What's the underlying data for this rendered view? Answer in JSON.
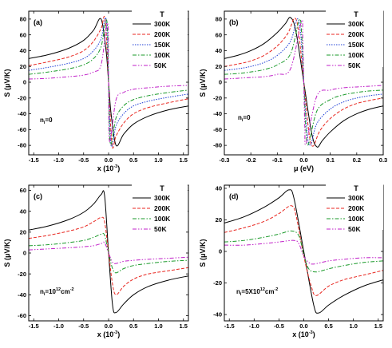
{
  "colors": {
    "300K": "#000000",
    "200K": "#e8261f",
    "150K": "#1f3fd6",
    "100K": "#1a9a2a",
    "50K": "#c020c8"
  },
  "chart_data": [
    {
      "panel": "(a)",
      "type": "line",
      "x_label": "x (10",
      "x_label_sup": "-3",
      "x_label_end": ")",
      "y_label": "S (μV/K)",
      "xlim": [
        -1.6,
        1.6
      ],
      "ylim": [
        -92,
        90
      ],
      "xticks": [
        -1.5,
        -1.0,
        -0.5,
        0.0,
        0.5,
        1.0,
        1.5
      ],
      "xtick_labels": [
        "-1.5",
        "-1.0",
        "-0.5",
        "0.0",
        "0.5",
        "1.0",
        "1.5"
      ],
      "yticks": [
        -80,
        -60,
        -40,
        -20,
        0,
        20,
        40,
        60,
        80
      ],
      "ytick_labels": [
        "-80",
        "-60",
        "-40",
        "-20",
        "0",
        "20",
        "40",
        "60",
        "80"
      ],
      "legend_title": "T",
      "annotation": "n",
      "annotation_sub": "i",
      "annotation_rest": "=0",
      "series": [
        {
          "name": "300K",
          "peak_x": 0.1,
          "peak_y": 83,
          "x": [
            -1.6,
            -1.2,
            -0.8,
            -0.5,
            -0.3,
            -0.15,
            -0.05,
            0,
            0.05,
            0.15,
            0.3,
            0.5,
            0.8,
            1.2,
            1.6
          ],
          "y": [
            30,
            35,
            43,
            53,
            66,
            80,
            40,
            0,
            -40,
            -80,
            -66,
            -53,
            -43,
            -35,
            -30
          ]
        },
        {
          "name": "200K",
          "peak_x": 0.07,
          "peak_y": 82,
          "x": [
            -1.6,
            -1.2,
            -0.8,
            -0.5,
            -0.3,
            -0.15,
            -0.07,
            0,
            0.07,
            0.15,
            0.3,
            0.5,
            0.8,
            1.2,
            1.6
          ],
          "y": [
            21,
            26,
            32,
            40,
            52,
            68,
            80,
            0,
            -80,
            -68,
            -52,
            -40,
            -32,
            -26,
            -21
          ]
        },
        {
          "name": "150K",
          "peak_x": 0.05,
          "peak_y": 80,
          "x": [
            -1.6,
            -1.2,
            -0.8,
            -0.5,
            -0.3,
            -0.15,
            -0.05,
            0,
            0.05,
            0.15,
            0.3,
            0.5,
            0.8,
            1.2,
            1.6
          ],
          "y": [
            15,
            19,
            24,
            30,
            40,
            55,
            80,
            0,
            -80,
            -55,
            -40,
            -30,
            -24,
            -19,
            -15
          ]
        },
        {
          "name": "100K",
          "peak_x": 0.035,
          "peak_y": 78,
          "x": [
            -1.6,
            -1.2,
            -0.8,
            -0.5,
            -0.3,
            -0.15,
            -0.035,
            0,
            0.035,
            0.15,
            0.3,
            0.5,
            0.8,
            1.2,
            1.6
          ],
          "y": [
            10,
            13,
            17,
            22,
            30,
            45,
            78,
            0,
            -78,
            -45,
            -30,
            -22,
            -17,
            -13,
            -10
          ]
        },
        {
          "name": "50K",
          "peak_x": 0.02,
          "peak_y": 75,
          "x": [
            -1.6,
            -1.2,
            -0.8,
            -0.5,
            -0.3,
            -0.15,
            -0.02,
            0,
            0.02,
            0.15,
            0.3,
            0.5,
            0.8,
            1.2,
            1.6
          ],
          "y": [
            4,
            5,
            7,
            9,
            13,
            22,
            75,
            0,
            -75,
            -22,
            -13,
            -9,
            -7,
            -5,
            -4
          ]
        }
      ]
    },
    {
      "panel": "(b)",
      "type": "line",
      "x_label": "μ (eV)",
      "y_label": "S (μV/K)",
      "xlim": [
        -0.3,
        0.3
      ],
      "ylim": [
        -92,
        90
      ],
      "xticks": [
        -0.3,
        -0.2,
        -0.1,
        0.0,
        0.1,
        0.2,
        0.3
      ],
      "xtick_labels": [
        "-0.3",
        "-0.2",
        "-0.1",
        "0.0",
        "0.1",
        "0.2",
        "0.3"
      ],
      "yticks": [
        -80,
        -60,
        -40,
        -20,
        0,
        20,
        40,
        60,
        80
      ],
      "ytick_labels": [
        "-80",
        "-60",
        "-40",
        "-20",
        "0",
        "20",
        "40",
        "60",
        "80"
      ],
      "legend_title": "T",
      "annotation": "n",
      "annotation_sub": "i",
      "annotation_rest": "=0",
      "series": [
        {
          "name": "300K",
          "x": [
            -0.3,
            -0.25,
            -0.2,
            -0.15,
            -0.1,
            -0.07,
            -0.05,
            -0.03,
            0,
            0.03,
            0.05,
            0.07,
            0.1,
            0.15,
            0.2,
            0.25,
            0.3
          ],
          "y": [
            30,
            34,
            40,
            49,
            63,
            74,
            82,
            65,
            0,
            -65,
            -82,
            -74,
            -63,
            -49,
            -40,
            -34,
            -30
          ]
        },
        {
          "name": "200K",
          "x": [
            -0.3,
            -0.25,
            -0.2,
            -0.15,
            -0.1,
            -0.06,
            -0.035,
            -0.02,
            0,
            0.02,
            0.035,
            0.06,
            0.1,
            0.15,
            0.2,
            0.25,
            0.3
          ],
          "y": [
            20,
            23,
            27,
            34,
            46,
            62,
            81,
            65,
            0,
            -65,
            -81,
            -62,
            -46,
            -34,
            -27,
            -23,
            -20
          ]
        },
        {
          "name": "150K",
          "x": [
            -0.3,
            -0.25,
            -0.2,
            -0.15,
            -0.1,
            -0.05,
            -0.025,
            -0.012,
            0,
            0.012,
            0.025,
            0.05,
            0.1,
            0.15,
            0.2,
            0.25,
            0.3
          ],
          "y": [
            15,
            17,
            20,
            25,
            34,
            52,
            80,
            62,
            0,
            -62,
            -80,
            -52,
            -34,
            -25,
            -20,
            -17,
            -15
          ]
        },
        {
          "name": "100K",
          "x": [
            -0.3,
            -0.25,
            -0.2,
            -0.15,
            -0.1,
            -0.05,
            -0.017,
            -0.008,
            0,
            0.008,
            0.017,
            0.05,
            0.1,
            0.15,
            0.2,
            0.25,
            0.3
          ],
          "y": [
            10,
            11,
            13,
            16,
            22,
            36,
            79,
            60,
            0,
            -60,
            -79,
            -36,
            -22,
            -16,
            -13,
            -11,
            -10
          ]
        },
        {
          "name": "50K",
          "x": [
            -0.3,
            -0.25,
            -0.2,
            -0.15,
            -0.1,
            -0.05,
            -0.009,
            -0.004,
            0,
            0.004,
            0.009,
            0.05,
            0.1,
            0.15,
            0.2,
            0.25,
            0.3
          ],
          "y": [
            4,
            5,
            6,
            7,
            10,
            17,
            77,
            58,
            0,
            -58,
            -77,
            -17,
            -10,
            -7,
            -6,
            -5,
            -4
          ]
        }
      ]
    },
    {
      "panel": "(c)",
      "type": "line",
      "x_label": "x (10",
      "x_label_sup": "-3",
      "x_label_end": ")",
      "y_label": "S (μV/K)",
      "xlim": [
        -1.6,
        1.6
      ],
      "ylim": [
        -65,
        65
      ],
      "xticks": [
        -1.5,
        -1.0,
        -0.5,
        0.0,
        0.5,
        1.0,
        1.5
      ],
      "xtick_labels": [
        "-1.5",
        "-1.0",
        "-0.5",
        "0.0",
        "0.5",
        "1.0",
        "1.5"
      ],
      "yticks": [
        -60,
        -40,
        -20,
        0,
        20,
        40,
        60
      ],
      "ytick_labels": [
        "-60",
        "-40",
        "-20",
        "0",
        "20",
        "40",
        "60"
      ],
      "legend_title": "T",
      "annotation": "n",
      "annotation_sub": "i",
      "annotation_rest": "=10",
      "annotation_sup": "12",
      "annotation_end": "cm",
      "annotation_end_sup": "-2",
      "series": [
        {
          "name": "300K",
          "x": [
            -1.6,
            -1.2,
            -0.8,
            -0.5,
            -0.3,
            -0.15,
            -0.08,
            0,
            0.08,
            0.15,
            0.3,
            0.5,
            0.8,
            1.2,
            1.6
          ],
          "y": [
            22,
            26,
            32,
            39,
            47,
            56,
            55,
            0,
            -50,
            -57,
            -49,
            -40,
            -32,
            -26,
            -22
          ]
        },
        {
          "name": "200K",
          "x": [
            -1.6,
            -1.2,
            -0.8,
            -0.5,
            -0.3,
            -0.15,
            -0.08,
            0,
            0.08,
            0.15,
            0.3,
            0.5,
            0.8,
            1.2,
            1.6
          ],
          "y": [
            14,
            17,
            21,
            25,
            30,
            34,
            30,
            0,
            -30,
            -40,
            -32,
            -25,
            -20,
            -17,
            -14
          ]
        },
        {
          "name": "100K",
          "x": [
            -1.6,
            -1.2,
            -0.8,
            -0.5,
            -0.3,
            -0.15,
            -0.08,
            0,
            0.08,
            0.15,
            0.3,
            0.5,
            0.8,
            1.2,
            1.6
          ],
          "y": [
            7,
            8,
            10,
            12,
            15,
            18,
            17,
            0,
            -15,
            -19,
            -15,
            -12,
            -10,
            -8,
            -7
          ]
        },
        {
          "name": "50K",
          "x": [
            -1.6,
            -1.2,
            -0.8,
            -0.5,
            -0.3,
            -0.15,
            -0.08,
            0,
            0.08,
            0.15,
            0.3,
            0.5,
            0.8,
            1.2,
            1.6
          ],
          "y": [
            3,
            4,
            5,
            6,
            7,
            9,
            10,
            0,
            -9,
            -10,
            -8,
            -7,
            -6,
            -5,
            -4
          ]
        }
      ]
    },
    {
      "panel": "(d)",
      "type": "line",
      "x_label": "x (10",
      "x_label_sup": "-3",
      "x_label_end": ")",
      "y_label": "S (μV/K)",
      "xlim": [
        -1.6,
        1.6
      ],
      "ylim": [
        -44,
        42
      ],
      "xticks": [
        -1.5,
        -1.0,
        -0.5,
        0.0,
        0.5,
        1.0,
        1.5
      ],
      "xtick_labels": [
        "-1.5",
        "-1.0",
        "-0.5",
        "0.0",
        "0.5",
        "1.0",
        "1.5"
      ],
      "yticks": [
        -40,
        -20,
        0,
        20,
        40
      ],
      "ytick_labels": [
        "-40",
        "-20",
        "0",
        "20",
        "40"
      ],
      "legend_title": "T",
      "annotation": "n",
      "annotation_sub": "i",
      "annotation_rest": "=5X10",
      "annotation_sup": "12",
      "annotation_end": "cm",
      "annotation_end_sup": "-2",
      "series": [
        {
          "name": "300K",
          "x": [
            -1.6,
            -1.2,
            -0.8,
            -0.5,
            -0.3,
            -0.2,
            0,
            0.2,
            0.3,
            0.5,
            0.8,
            1.2,
            1.6
          ],
          "y": [
            18,
            22,
            28,
            34,
            39,
            34,
            0,
            -34,
            -39,
            -34,
            -28,
            -22,
            -18
          ]
        },
        {
          "name": "200K",
          "x": [
            -1.6,
            -1.2,
            -0.8,
            -0.5,
            -0.25,
            -0.15,
            0,
            0.15,
            0.25,
            0.5,
            0.8,
            1.2,
            1.6
          ],
          "y": [
            12,
            15,
            19,
            24,
            29,
            22,
            -3,
            -22,
            -28,
            -22,
            -18,
            -15,
            -12
          ]
        },
        {
          "name": "100K",
          "x": [
            -1.6,
            -1.2,
            -0.8,
            -0.5,
            -0.25,
            -0.1,
            0,
            0.1,
            0.25,
            0.5,
            0.8,
            1.2,
            1.6
          ],
          "y": [
            6,
            7,
            9,
            11,
            13,
            10,
            -2,
            -11,
            -13,
            -11,
            -9,
            -7,
            -6
          ]
        },
        {
          "name": "50K",
          "x": [
            -1.6,
            -1.2,
            -0.8,
            -0.5,
            -0.2,
            -0.1,
            0,
            0.1,
            0.2,
            0.5,
            0.8,
            1.2,
            1.6
          ],
          "y": [
            4,
            4,
            5,
            6,
            7,
            5,
            -3,
            -7,
            -8,
            -6,
            -5,
            -4,
            -4
          ]
        }
      ]
    }
  ]
}
